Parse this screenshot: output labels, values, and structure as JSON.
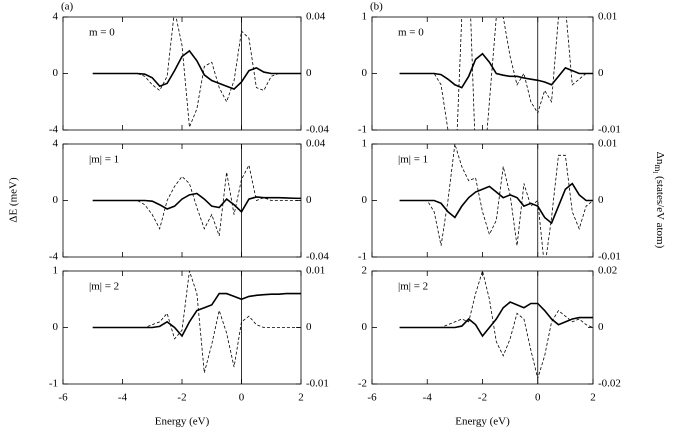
{
  "y_label": "ΔE (meV)",
  "y2_label": {
    "main": "Δn",
    "sub": "m",
    "subsub": "l",
    "rest": " (states/eV atom)"
  },
  "chart_data": [
    {
      "type": "line",
      "panel_label": "(a)",
      "annotation": "m = 0",
      "xlim": [
        -6,
        2
      ],
      "xticks": [
        -6,
        -4,
        -2,
        0,
        2
      ],
      "show_xtick_labels": false,
      "vlines": [
        0
      ],
      "ylim": [
        -4,
        4
      ],
      "yticks": [
        -4,
        0,
        4
      ],
      "y2lim": [
        -0.04,
        0.04
      ],
      "y2ticks": [
        -0.04,
        0,
        0.04
      ],
      "x": [
        -5,
        -4.75,
        -4.5,
        -4.25,
        -4,
        -3.75,
        -3.5,
        -3.25,
        -3,
        -2.75,
        -2.5,
        -2.25,
        -2,
        -1.75,
        -1.5,
        -1.25,
        -1,
        -0.75,
        -0.5,
        -0.25,
        0,
        0.25,
        0.5,
        0.75,
        1,
        1.25,
        1.5,
        1.75,
        2
      ],
      "series": [
        {
          "color": "#000000",
          "style": "solid",
          "values": [
            0,
            0,
            0,
            0,
            0,
            0,
            0,
            -0.05,
            -0.3,
            -0.9,
            -0.7,
            0.2,
            1.2,
            1.6,
            0.9,
            -0.1,
            -0.5,
            -0.7,
            -0.9,
            -1.1,
            -0.6,
            0.2,
            0.4,
            0.1,
            0,
            0,
            0,
            0,
            0
          ]
        },
        {
          "color": "#000000",
          "style": "dashed",
          "axis": "y2",
          "values": [
            0,
            0,
            0,
            0,
            0,
            0,
            0,
            -0.002,
            -0.008,
            -0.012,
            -0.002,
            0.045,
            0.02,
            -0.038,
            -0.025,
            0.005,
            0.008,
            -0.01,
            -0.02,
            -0.005,
            0.03,
            0.025,
            -0.01,
            -0.012,
            -0.002,
            0,
            0,
            0,
            0
          ]
        }
      ]
    },
    {
      "type": "line",
      "annotation": "|m| = 1",
      "xlim": [
        -6,
        2
      ],
      "xticks": [
        -6,
        -4,
        -2,
        0,
        2
      ],
      "show_xtick_labels": false,
      "vlines": [
        0
      ],
      "ylim": [
        -4,
        4
      ],
      "yticks": [
        -4,
        0,
        4
      ],
      "y2lim": [
        -0.04,
        0.04
      ],
      "y2ticks": [
        -0.04,
        0,
        0.04
      ],
      "x": [
        -5,
        -4.75,
        -4.5,
        -4.25,
        -4,
        -3.75,
        -3.5,
        -3.25,
        -3,
        -2.75,
        -2.5,
        -2.25,
        -2,
        -1.75,
        -1.5,
        -1.25,
        -1,
        -0.75,
        -0.5,
        -0.25,
        0,
        0.25,
        0.5,
        0.75,
        1,
        1.25,
        1.5,
        1.75,
        2
      ],
      "series": [
        {
          "color": "#000000",
          "style": "solid",
          "values": [
            0,
            0,
            0,
            0,
            0,
            0,
            0,
            0,
            -0.05,
            -0.3,
            -0.6,
            -0.4,
            0.1,
            0.4,
            0.5,
            0.1,
            -0.4,
            -0.5,
            0.1,
            -0.3,
            -0.8,
            0.1,
            0.25,
            0.2,
            0.2,
            0.2,
            0.18,
            0.16,
            0.15
          ]
        },
        {
          "color": "#000000",
          "style": "dashed",
          "axis": "y2",
          "values": [
            0,
            0,
            0,
            0,
            0,
            0,
            0,
            -0.003,
            -0.01,
            -0.02,
            0,
            0.01,
            0.017,
            0.012,
            -0.005,
            -0.02,
            -0.01,
            -0.025,
            0.02,
            -0.01,
            0.015,
            0.025,
            0,
            0.002,
            0,
            0,
            0,
            0,
            0
          ]
        }
      ]
    },
    {
      "type": "line",
      "annotation": "|m| = 2",
      "xlim": [
        -6,
        2
      ],
      "xticks": [
        -6,
        -4,
        -2,
        0,
        2
      ],
      "show_xtick_labels": true,
      "x_label": "Energy (eV)",
      "vlines": [
        0
      ],
      "ylim": [
        -1,
        1
      ],
      "yticks": [
        -1,
        0,
        1
      ],
      "y2lim": [
        -0.01,
        0.01
      ],
      "y2ticks": [
        -0.01,
        0,
        0.01
      ],
      "x": [
        -5,
        -4.75,
        -4.5,
        -4.25,
        -4,
        -3.75,
        -3.5,
        -3.25,
        -3,
        -2.75,
        -2.5,
        -2.25,
        -2,
        -1.75,
        -1.5,
        -1.25,
        -1,
        -0.75,
        -0.5,
        -0.25,
        0,
        0.25,
        0.5,
        0.75,
        1,
        1.25,
        1.5,
        1.75,
        2
      ],
      "series": [
        {
          "color": "#000000",
          "style": "solid",
          "values": [
            0,
            0,
            0,
            0,
            0,
            0,
            0,
            0,
            0,
            0.02,
            0.1,
            0,
            -0.15,
            0.1,
            0.3,
            0.35,
            0.4,
            0.6,
            0.6,
            0.55,
            0.5,
            0.55,
            0.57,
            0.58,
            0.59,
            0.59,
            0.6,
            0.6,
            0.6
          ]
        },
        {
          "color": "#000000",
          "style": "dashed",
          "axis": "y2",
          "values": [
            0,
            0,
            0,
            0,
            0,
            0,
            0,
            0,
            0.0005,
            0.001,
            0.0025,
            -0.002,
            -0.0005,
            0.01,
            0.006,
            -0.008,
            -0.003,
            0.003,
            -0.001,
            -0.007,
            0.001,
            0.002,
            0.0005,
            0,
            0,
            0,
            0,
            0,
            0
          ]
        }
      ]
    },
    {
      "type": "line",
      "panel_label": "(b)",
      "annotation": "m = 0",
      "xlim": [
        -6,
        2
      ],
      "xticks": [
        -6,
        -4,
        -2,
        0,
        2
      ],
      "show_xtick_labels": false,
      "vlines": [
        0
      ],
      "ylim": [
        -1,
        1
      ],
      "yticks": [
        -1,
        0,
        1
      ],
      "y2lim": [
        -0.01,
        0.01
      ],
      "y2ticks": [
        -0.01,
        0,
        0.01
      ],
      "x": [
        -5,
        -4.75,
        -4.5,
        -4.25,
        -4,
        -3.75,
        -3.5,
        -3.25,
        -3,
        -2.75,
        -2.5,
        -2.25,
        -2,
        -1.75,
        -1.5,
        -1.25,
        -1,
        -0.75,
        -0.5,
        -0.25,
        0,
        0.25,
        0.5,
        0.75,
        1,
        1.25,
        1.5,
        1.75,
        2
      ],
      "series": [
        {
          "color": "#000000",
          "style": "solid",
          "values": [
            0,
            0,
            0,
            0,
            0,
            0,
            -0.02,
            -0.1,
            -0.2,
            -0.25,
            -0.05,
            0.25,
            0.35,
            0.2,
            0,
            -0.03,
            -0.05,
            -0.05,
            -0.08,
            -0.1,
            -0.12,
            -0.15,
            -0.2,
            -0.05,
            0.1,
            0.05,
            0,
            0,
            0
          ]
        },
        {
          "color": "#000000",
          "style": "dashed",
          "axis": "y2",
          "values": [
            0,
            0,
            0,
            0,
            0,
            0,
            -0.002,
            -0.01,
            -0.02,
            0.01,
            0.02,
            -0.015,
            -0.02,
            -0.005,
            0.01,
            0.01,
            0.003,
            -0.002,
            0,
            -0.005,
            -0.007,
            -0.003,
            -0.005,
            0.01,
            0.012,
            -0.002,
            -0.001,
            0,
            0
          ]
        }
      ]
    },
    {
      "type": "line",
      "annotation": "|m| = 1",
      "xlim": [
        -6,
        2
      ],
      "xticks": [
        -6,
        -4,
        -2,
        0,
        2
      ],
      "show_xtick_labels": false,
      "vlines": [
        0
      ],
      "ylim": [
        -1,
        1
      ],
      "yticks": [
        -1,
        0,
        1
      ],
      "y2lim": [
        -0.01,
        0.01
      ],
      "y2ticks": [
        -0.01,
        0,
        0.01
      ],
      "x": [
        -5,
        -4.75,
        -4.5,
        -4.25,
        -4,
        -3.75,
        -3.5,
        -3.25,
        -3,
        -2.75,
        -2.5,
        -2.25,
        -2,
        -1.75,
        -1.5,
        -1.25,
        -1,
        -0.75,
        -0.5,
        -0.25,
        0,
        0.25,
        0.5,
        0.75,
        1,
        1.25,
        1.5,
        1.75,
        2
      ],
      "series": [
        {
          "color": "#000000",
          "style": "solid",
          "values": [
            0,
            0,
            0,
            0,
            0,
            0,
            -0.05,
            -0.2,
            -0.3,
            -0.1,
            0.05,
            0.15,
            0.2,
            0.25,
            0.15,
            0.05,
            0.1,
            0.05,
            -0.1,
            -0.05,
            -0.1,
            -0.3,
            -0.4,
            -0.1,
            0.2,
            0.3,
            0.1,
            0,
            0
          ]
        },
        {
          "color": "#000000",
          "style": "dashed",
          "axis": "y2",
          "values": [
            0,
            0,
            0,
            0,
            0,
            -0.002,
            -0.008,
            0,
            0.01,
            0.006,
            0.0035,
            0.004,
            -0.002,
            -0.006,
            -0.0035,
            0.006,
            0.001,
            -0.008,
            0.003,
            -0.001,
            0,
            -0.012,
            -0.003,
            0.008,
            0.008,
            -0.002,
            -0.005,
            -0.001,
            0
          ]
        }
      ]
    },
    {
      "type": "line",
      "annotation": "|m| = 2",
      "xlim": [
        -6,
        2
      ],
      "xticks": [
        -6,
        -4,
        -2,
        0,
        2
      ],
      "show_xtick_labels": true,
      "x_label": "Energy (eV)",
      "vlines": [
        0
      ],
      "ylim": [
        -2,
        2
      ],
      "yticks": [
        -2,
        0,
        2
      ],
      "y2lim": [
        -0.02,
        0.02
      ],
      "y2ticks": [
        -0.02,
        0,
        0.02
      ],
      "x": [
        -5,
        -4.75,
        -4.5,
        -4.25,
        -4,
        -3.75,
        -3.5,
        -3.25,
        -3,
        -2.75,
        -2.5,
        -2.25,
        -2,
        -1.75,
        -1.5,
        -1.25,
        -1,
        -0.75,
        -0.5,
        -0.25,
        0,
        0.25,
        0.5,
        0.75,
        1,
        1.25,
        1.5,
        1.75,
        2
      ],
      "series": [
        {
          "color": "#000000",
          "style": "solid",
          "values": [
            0,
            0,
            0,
            0,
            0,
            0,
            0,
            0,
            0,
            0.05,
            0.3,
            0.1,
            -0.3,
            0,
            0.3,
            0.7,
            0.9,
            0.8,
            0.7,
            0.85,
            0.85,
            0.6,
            0.3,
            0.1,
            0.2,
            0.3,
            0.35,
            0.35,
            0.35
          ]
        },
        {
          "color": "#000000",
          "style": "dashed",
          "axis": "y2",
          "values": [
            0,
            0,
            0,
            0,
            0,
            0,
            0,
            0.001,
            0.002,
            0.003,
            0.002,
            0.012,
            0.02,
            0.01,
            -0.005,
            -0.01,
            -0.004,
            0.005,
            0.003,
            -0.008,
            -0.018,
            -0.01,
            0.002,
            0.006,
            0.004,
            0.002,
            0.003,
            0.001,
            0
          ]
        }
      ]
    }
  ]
}
